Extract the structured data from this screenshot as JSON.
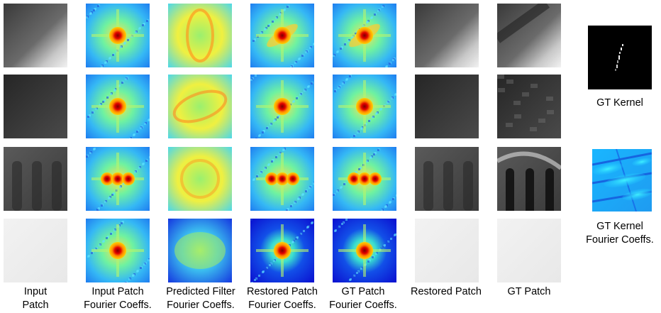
{
  "columns": [
    {
      "line1": "Input",
      "line2": "Patch",
      "kind": "gray"
    },
    {
      "line1": "Input Patch",
      "line2": "Fourier Coeffs.",
      "kind": "fourier"
    },
    {
      "line1": "Predicted Filter",
      "line2": "Fourier Coeffs.",
      "kind": "filter"
    },
    {
      "line1": "Restored Patch",
      "line2": "Fourier Coeffs.",
      "kind": "fourier"
    },
    {
      "line1": "GT Patch",
      "line2": "Fourier Coeffs.",
      "kind": "fourier"
    },
    {
      "line1": "Restored Patch",
      "line2": "",
      "kind": "gray"
    },
    {
      "line1": "GT Patch",
      "line2": "",
      "kind": "gray"
    }
  ],
  "side": {
    "kernel_label": "GT Kernel",
    "kernel_fourier_line1": "GT Kernel",
    "kernel_fourier_line2": "Fourier Coeffs."
  },
  "colors": {
    "background": "#ffffff",
    "jet_low": "#00008f",
    "jet_mid": "#7fff7f",
    "jet_high": "#7f0000"
  }
}
